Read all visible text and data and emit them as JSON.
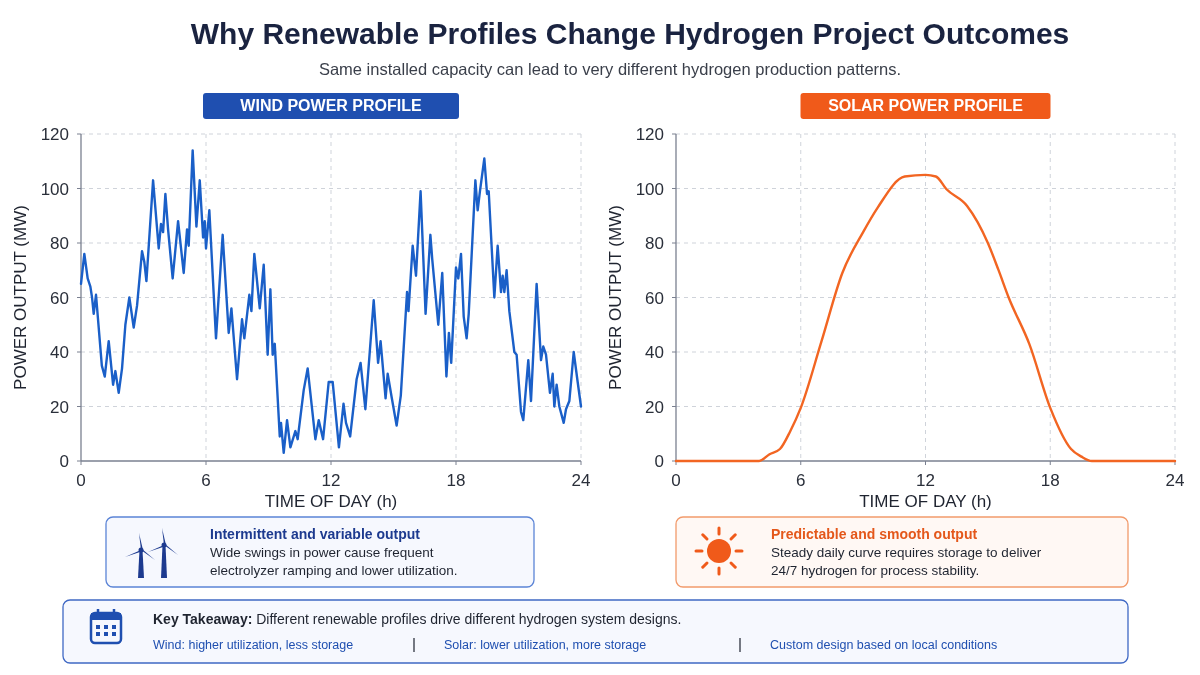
{
  "chart_data": [
    {
      "type": "other",
      "title": "Why Renewable Profiles Change Hydrogen Project Outcomes",
      "subtitle": "Same installed capacity can lead to very different hydrogen production patterns.",
      "annotations": [
        "Key Takeaway:",
        "Different renewable profiles drive different hydrogen system designs.",
        "Wind: higher utilization, less storage",
        "Solar: lower utilization, more storage",
        "Custom design based on local conditions"
      ]
    },
    {
      "type": "line",
      "title": "WIND POWER PROFILE",
      "xlabel": "TIME OF DAY (h)",
      "ylabel": "POWER OUTPUT (MW)",
      "annotations": [
        "Intermittent and variable output",
        "Wide swings in power cause frequent electrolyzer ramping and lower utilization."
      ],
      "x": [
        0,
        0.16,
        0.32,
        0.45,
        0.53,
        0.61,
        0.72,
        1.0,
        1.14,
        1.33,
        1.54,
        1.65,
        1.81,
        1.97,
        2.13,
        2.32,
        2.53,
        2.69,
        2.93,
        3.04,
        3.14,
        3.46,
        3.73,
        3.84,
        3.94,
        4.05,
        4.18,
        4.4,
        4.66,
        4.93,
        5.09,
        5.17,
        5.36,
        5.54,
        5.7,
        5.86,
        5.94,
        6.0,
        6.16,
        6.48,
        6.8,
        7.09,
        7.22,
        7.49,
        7.73,
        7.84,
        8.08,
        8.18,
        8.32,
        8.58,
        8.77,
        8.96,
        9.09,
        9.2,
        9.3,
        9.54,
        9.6,
        9.73,
        9.89,
        10.05,
        10.29,
        10.4,
        10.69,
        10.88,
        11.25,
        11.41,
        11.62,
        11.89,
        12.08,
        12.38,
        12.6,
        12.72,
        12.92,
        13.23,
        13.42,
        13.65,
        14.05,
        14.26,
        14.38,
        14.62,
        14.72,
        14.92,
        15.15,
        15.35,
        15.65,
        15.72,
        15.92,
        16.08,
        16.3,
        16.54,
        16.77,
        16.86,
        17.15,
        17.34,
        17.54,
        17.66,
        17.77,
        18.0,
        18.11,
        18.24,
        18.37,
        18.51,
        18.61,
        18.93,
        19.04,
        19.15,
        19.36,
        19.49,
        19.57,
        19.84,
        20.0,
        20.16,
        20.24,
        20.32,
        20.43,
        20.56,
        20.8,
        20.91,
        21.12,
        21.23,
        21.47,
        21.6,
        21.87,
        22.08,
        22.19,
        22.32,
        22.51,
        22.64,
        22.72,
        22.83,
        22.96,
        23.17,
        23.28,
        23.44,
        23.65,
        23.84,
        24.0
      ],
      "series": [
        {
          "color": "#1a5fc8",
          "values": [
            65,
            76,
            67,
            64,
            60,
            54,
            61,
            35,
            31,
            44,
            28,
            33,
            25,
            34,
            50,
            60,
            49,
            57,
            77,
            73,
            66,
            103,
            78,
            87,
            84,
            98,
            85,
            67,
            88,
            69,
            85,
            79,
            114,
            86,
            103,
            82,
            88,
            78,
            92,
            45,
            83,
            47,
            56,
            30,
            52,
            45,
            61,
            55,
            76,
            56,
            72,
            39,
            63,
            39,
            43,
            9,
            14,
            3,
            15,
            5,
            11,
            8,
            26,
            34,
            8,
            15,
            8,
            29,
            29,
            5,
            21,
            14,
            9,
            30,
            36,
            19,
            59,
            36,
            44,
            23,
            32,
            23,
            13,
            24,
            62,
            55,
            79,
            68,
            99,
            54,
            83,
            74,
            50,
            69,
            31,
            47,
            36,
            71,
            67,
            76,
            53,
            45,
            54,
            103,
            92,
            99,
            111,
            98,
            99,
            60,
            79,
            62,
            68,
            62,
            70,
            55,
            40,
            39,
            18,
            15,
            37,
            22,
            65,
            37,
            42,
            39,
            25,
            32,
            20,
            28,
            20,
            14,
            19,
            22,
            40,
            29,
            20
          ]
        }
      ],
      "xlim": [
        0,
        24
      ],
      "xticks": [
        0,
        6,
        12,
        18,
        24
      ],
      "ylim": [
        0,
        120
      ],
      "yticks": [
        0,
        20,
        40,
        60,
        80,
        100,
        120
      ],
      "grid": true
    },
    {
      "type": "line",
      "title": "SOLAR POWER PROFILE",
      "xlabel": "TIME OF DAY (h)",
      "ylabel": "POWER OUTPUT (MW)",
      "annotations": [
        "Predictable and smooth output",
        "Steady daily curve requires storage to deliver 24/7 hydrogen for process stability."
      ],
      "x": [
        0,
        4,
        4.5,
        5,
        5.5,
        6,
        7,
        8,
        9,
        9.7,
        11,
        12,
        12.5,
        13,
        14,
        15,
        15.5,
        16,
        17,
        18,
        19,
        19.5,
        20,
        24
      ],
      "series": [
        {
          "color": "#f26522",
          "values": [
            0,
            0,
            2.5,
            4.4,
            11,
            19.5,
            44,
            69,
            84,
            93,
            104.4,
            105,
            104.4,
            99.8,
            93.6,
            80,
            70.3,
            60,
            42.8,
            19.5,
            4.4,
            1.6,
            0,
            0
          ]
        }
      ],
      "xlim": [
        0,
        24
      ],
      "xticks": [
        0,
        6,
        12,
        18,
        24
      ],
      "ylim": [
        0,
        120
      ],
      "yticks": [
        0,
        20,
        40,
        60,
        80,
        100,
        120
      ],
      "grid": true
    }
  ]
}
